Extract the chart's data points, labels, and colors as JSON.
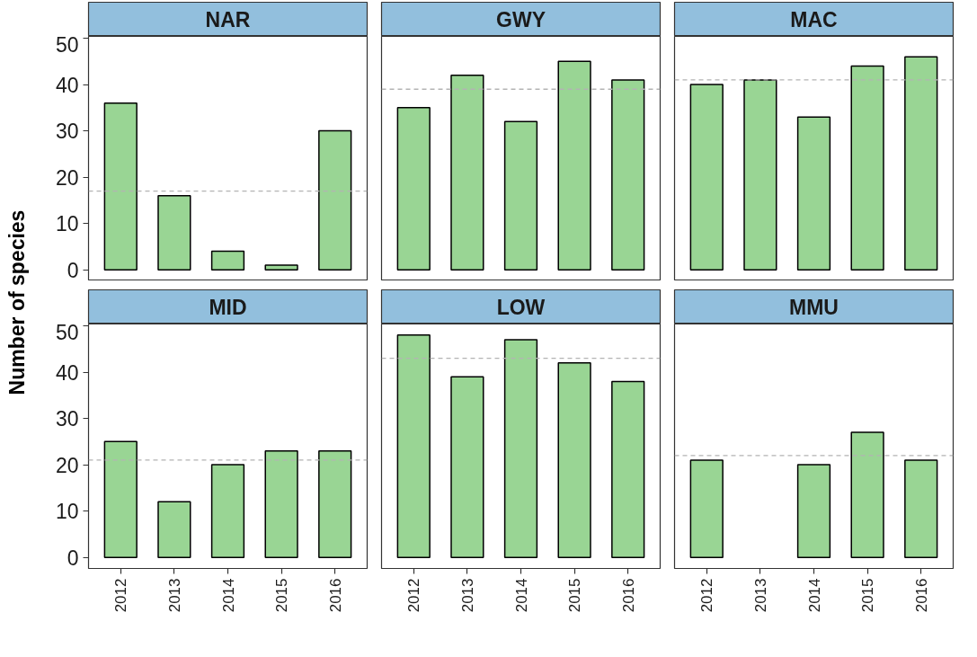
{
  "chart_data": [
    {
      "type": "bar",
      "title": "NAR",
      "ylabel": "Number of species",
      "categories": [
        "2012",
        "2013",
        "2014",
        "2015",
        "2016"
      ],
      "values": [
        36,
        16,
        4,
        1,
        30
      ],
      "color": "#99d594",
      "ylim": [
        -2.4,
        50.4
      ],
      "yticks": [
        0,
        10,
        20,
        30,
        40,
        50
      ],
      "ref_lines": [
        {
          "axis": "y",
          "value": 17,
          "color": "#b3b3b3",
          "line_style": "dashed"
        }
      ],
      "tick_labels": "y",
      "grid": false
    },
    {
      "type": "bar",
      "title": "GWY",
      "categories": [
        "2012",
        "2013",
        "2014",
        "2015",
        "2016"
      ],
      "values": [
        35,
        42,
        32,
        45,
        41
      ],
      "color": "#99d594",
      "ylim": [
        -2.4,
        50.4
      ],
      "yticks": [
        0,
        10,
        20,
        30,
        40,
        50
      ],
      "ref_lines": [
        {
          "axis": "y",
          "value": 39,
          "color": "#b3b3b3",
          "line_style": "dashed"
        }
      ],
      "tick_labels": false,
      "grid": false
    },
    {
      "type": "bar",
      "title": "MAC",
      "categories": [
        "2012",
        "2013",
        "2014",
        "2015",
        "2016"
      ],
      "values": [
        40,
        41,
        33,
        44,
        46
      ],
      "color": "#99d594",
      "ylim": [
        -2.4,
        50.4
      ],
      "yticks": [
        0,
        10,
        20,
        30,
        40,
        50
      ],
      "ref_lines": [
        {
          "axis": "y",
          "value": 41,
          "color": "#b3b3b3",
          "line_style": "dashed"
        }
      ],
      "tick_labels": false,
      "grid": false
    },
    {
      "type": "bar",
      "title": "MID",
      "categories": [
        "2012",
        "2013",
        "2014",
        "2015",
        "2016"
      ],
      "values": [
        25,
        12,
        20,
        23,
        23
      ],
      "color": "#99d594",
      "ylim": [
        -2.4,
        50.4
      ],
      "yticks": [
        0,
        10,
        20,
        30,
        40,
        50
      ],
      "ref_lines": [
        {
          "axis": "y",
          "value": 21,
          "color": "#b3b3b3",
          "line_style": "dashed"
        }
      ],
      "grid": false
    },
    {
      "type": "bar",
      "title": "LOW",
      "categories": [
        "2012",
        "2013",
        "2014",
        "2015",
        "2016"
      ],
      "values": [
        48,
        39,
        47,
        42,
        38
      ],
      "color": "#99d594",
      "ylim": [
        -2.4,
        50.4
      ],
      "yticks": [
        0,
        10,
        20,
        30,
        40,
        50
      ],
      "ref_lines": [
        {
          "axis": "y",
          "value": 43,
          "color": "#b3b3b3",
          "line_style": "dashed"
        }
      ],
      "tick_labels": "x",
      "grid": false
    },
    {
      "type": "bar",
      "title": "MMU",
      "categories": [
        "2012",
        "2013",
        "2014",
        "2015",
        "2016"
      ],
      "values": [
        21,
        null,
        20,
        27,
        21
      ],
      "color": "#99d594",
      "ylim": [
        -2.4,
        50.4
      ],
      "yticks": [
        0,
        10,
        20,
        30,
        40,
        50
      ],
      "ref_lines": [
        {
          "axis": "y",
          "value": 22,
          "color": "#b3b3b3",
          "line_style": "dashed"
        }
      ],
      "tick_labels": "x",
      "grid": false
    }
  ]
}
